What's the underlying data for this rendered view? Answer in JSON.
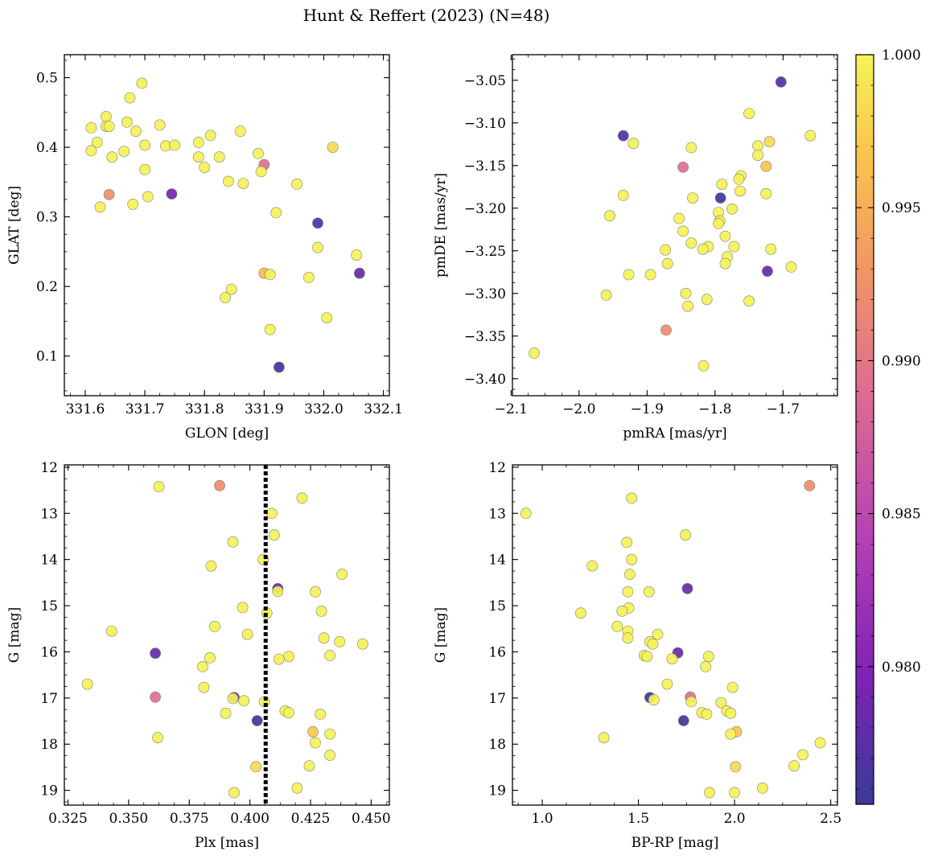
{
  "title": "Hunt & Reffert (2023) (N=48)",
  "colorbar": {
    "range": [
      0.9755,
      1.0
    ],
    "ticks": [
      "0.980",
      "0.985",
      "0.990",
      "0.995",
      "1.000"
    ],
    "tick_values": [
      0.98,
      0.985,
      0.99,
      0.995,
      1.0
    ],
    "colors": [
      "#3a3a97",
      "#7e22b4",
      "#b43fb6",
      "#dd6d92",
      "#f29763",
      "#fbc54b",
      "#f5f357"
    ]
  },
  "chart_data": [
    {
      "type": "scatter",
      "xlabel": "GLON [deg]",
      "ylabel": "GLAT [deg]",
      "xlim": [
        331.565,
        332.11
      ],
      "ylim": [
        0.043,
        0.533
      ],
      "xticks": [
        331.6,
        331.7,
        331.8,
        331.9,
        332.0,
        332.1
      ],
      "xtick_labels": [
        "331.6",
        "331.7",
        "331.8",
        "331.9",
        "332.0",
        "332.1"
      ],
      "yticks": [
        0.1,
        0.2,
        0.3,
        0.4,
        0.5
      ],
      "ytick_labels": [
        "0.1",
        "0.2",
        "0.3",
        "0.4",
        "0.5"
      ],
      "points": [
        {
          "x": 331.61,
          "y": 0.428,
          "c": 1.0
        },
        {
          "x": 331.62,
          "y": 0.407,
          "c": 1.0
        },
        {
          "x": 331.61,
          "y": 0.395,
          "c": 1.0
        },
        {
          "x": 331.635,
          "y": 0.444,
          "c": 1.0
        },
        {
          "x": 331.635,
          "y": 0.43,
          "c": 1.0
        },
        {
          "x": 331.64,
          "y": 0.43,
          "c": 1.0
        },
        {
          "x": 331.645,
          "y": 0.386,
          "c": 1.0
        },
        {
          "x": 331.665,
          "y": 0.394,
          "c": 1.0
        },
        {
          "x": 331.67,
          "y": 0.436,
          "c": 1.0
        },
        {
          "x": 331.675,
          "y": 0.471,
          "c": 1.0
        },
        {
          "x": 331.685,
          "y": 0.423,
          "c": 1.0
        },
        {
          "x": 331.695,
          "y": 0.492,
          "c": 1.0
        },
        {
          "x": 331.7,
          "y": 0.403,
          "c": 1.0
        },
        {
          "x": 331.7,
          "y": 0.368,
          "c": 1.0
        },
        {
          "x": 331.725,
          "y": 0.432,
          "c": 1.0
        },
        {
          "x": 331.735,
          "y": 0.402,
          "c": 1.0
        },
        {
          "x": 331.75,
          "y": 0.403,
          "c": 1.0
        },
        {
          "x": 331.745,
          "y": 0.333,
          "c": 0.979
        },
        {
          "x": 331.64,
          "y": 0.332,
          "c": 0.991
        },
        {
          "x": 331.625,
          "y": 0.314,
          "c": 1.0
        },
        {
          "x": 331.68,
          "y": 0.318,
          "c": 1.0
        },
        {
          "x": 331.705,
          "y": 0.329,
          "c": 1.0
        },
        {
          "x": 331.79,
          "y": 0.407,
          "c": 1.0
        },
        {
          "x": 331.79,
          "y": 0.386,
          "c": 1.0
        },
        {
          "x": 331.81,
          "y": 0.417,
          "c": 1.0
        },
        {
          "x": 331.8,
          "y": 0.371,
          "c": 1.0
        },
        {
          "x": 331.825,
          "y": 0.386,
          "c": 1.0
        },
        {
          "x": 331.86,
          "y": 0.423,
          "c": 1.0
        },
        {
          "x": 331.84,
          "y": 0.351,
          "c": 1.0
        },
        {
          "x": 331.865,
          "y": 0.348,
          "c": 1.0
        },
        {
          "x": 331.89,
          "y": 0.391,
          "c": 1.0
        },
        {
          "x": 331.9,
          "y": 0.375,
          "c": 0.988
        },
        {
          "x": 331.895,
          "y": 0.365,
          "c": 1.0
        },
        {
          "x": 331.955,
          "y": 0.347,
          "c": 1.0
        },
        {
          "x": 332.015,
          "y": 0.4,
          "c": 0.998
        },
        {
          "x": 331.92,
          "y": 0.306,
          "c": 1.0
        },
        {
          "x": 331.99,
          "y": 0.291,
          "c": 0.977
        },
        {
          "x": 331.99,
          "y": 0.256,
          "c": 1.0
        },
        {
          "x": 332.055,
          "y": 0.245,
          "c": 1.0
        },
        {
          "x": 332.06,
          "y": 0.219,
          "c": 0.978
        },
        {
          "x": 331.9,
          "y": 0.219,
          "c": 0.995
        },
        {
          "x": 331.91,
          "y": 0.217,
          "c": 1.0
        },
        {
          "x": 331.975,
          "y": 0.213,
          "c": 1.0
        },
        {
          "x": 331.845,
          "y": 0.196,
          "c": 1.0
        },
        {
          "x": 331.835,
          "y": 0.184,
          "c": 1.0
        },
        {
          "x": 332.005,
          "y": 0.155,
          "c": 1.0
        },
        {
          "x": 331.91,
          "y": 0.138,
          "c": 1.0
        },
        {
          "x": 331.925,
          "y": 0.084,
          "c": 0.976
        }
      ]
    },
    {
      "type": "scatter",
      "xlabel": "pmRA [mas/yr]",
      "ylabel": "pmDE [mas/yr]",
      "xlim": [
        -2.098,
        -1.62
      ],
      "ylim": [
        -3.42,
        -3.02
      ],
      "xticks": [
        -2.1,
        -2.0,
        -1.9,
        -1.8,
        -1.7
      ],
      "xtick_labels": [
        "−2.1",
        "−2.0",
        "−1.9",
        "−1.8",
        "−1.7"
      ],
      "yticks": [
        -3.05,
        -3.1,
        -3.15,
        -3.2,
        -3.25,
        -3.3,
        -3.35,
        -3.4
      ],
      "ytick_labels": [
        "−3.05",
        "−3.10",
        "−3.15",
        "−3.20",
        "−3.25",
        "−3.30",
        "−3.35",
        "−3.40"
      ],
      "points": [
        {
          "x": -1.703,
          "y": -3.052,
          "c": 0.977
        },
        {
          "x": -1.935,
          "y": -3.115,
          "c": 0.977
        },
        {
          "x": -1.92,
          "y": -3.124,
          "c": 1.0
        },
        {
          "x": -1.75,
          "y": -3.089,
          "c": 1.0
        },
        {
          "x": -1.66,
          "y": -3.115,
          "c": 1.0
        },
        {
          "x": -1.72,
          "y": -3.122,
          "c": 0.998
        },
        {
          "x": -1.737,
          "y": -3.127,
          "c": 1.0
        },
        {
          "x": -1.737,
          "y": -3.138,
          "c": 1.0
        },
        {
          "x": -1.835,
          "y": -3.129,
          "c": 1.0
        },
        {
          "x": -1.847,
          "y": -3.152,
          "c": 0.988
        },
        {
          "x": -1.725,
          "y": -3.151,
          "c": 0.996
        },
        {
          "x": -1.762,
          "y": -3.162,
          "c": 1.0
        },
        {
          "x": -1.765,
          "y": -3.166,
          "c": 1.0
        },
        {
          "x": -1.79,
          "y": -3.172,
          "c": 1.0
        },
        {
          "x": -1.763,
          "y": -3.18,
          "c": 1.0
        },
        {
          "x": -1.725,
          "y": -3.183,
          "c": 1.0
        },
        {
          "x": -1.792,
          "y": -3.188,
          "c": 0.976
        },
        {
          "x": -1.833,
          "y": -3.188,
          "c": 1.0
        },
        {
          "x": -1.935,
          "y": -3.185,
          "c": 1.0
        },
        {
          "x": -1.775,
          "y": -3.201,
          "c": 1.0
        },
        {
          "x": -1.795,
          "y": -3.205,
          "c": 1.0
        },
        {
          "x": -1.955,
          "y": -3.209,
          "c": 1.0
        },
        {
          "x": -1.853,
          "y": -3.212,
          "c": 1.0
        },
        {
          "x": -1.793,
          "y": -3.215,
          "c": 1.0
        },
        {
          "x": -1.795,
          "y": -3.218,
          "c": 1.0
        },
        {
          "x": -1.847,
          "y": -3.227,
          "c": 1.0
        },
        {
          "x": -1.785,
          "y": -3.233,
          "c": 1.0
        },
        {
          "x": -1.835,
          "y": -3.241,
          "c": 1.0
        },
        {
          "x": -1.81,
          "y": -3.245,
          "c": 1.0
        },
        {
          "x": -1.772,
          "y": -3.245,
          "c": 1.0
        },
        {
          "x": -1.818,
          "y": -3.248,
          "c": 1.0
        },
        {
          "x": -1.718,
          "y": -3.248,
          "c": 1.0
        },
        {
          "x": -1.873,
          "y": -3.249,
          "c": 1.0
        },
        {
          "x": -1.782,
          "y": -3.257,
          "c": 1.0
        },
        {
          "x": -1.87,
          "y": -3.265,
          "c": 1.0
        },
        {
          "x": -1.785,
          "y": -3.265,
          "c": 1.0
        },
        {
          "x": -1.688,
          "y": -3.269,
          "c": 1.0
        },
        {
          "x": -1.723,
          "y": -3.274,
          "c": 0.978
        },
        {
          "x": -1.927,
          "y": -3.278,
          "c": 1.0
        },
        {
          "x": -1.895,
          "y": -3.278,
          "c": 1.0
        },
        {
          "x": -1.96,
          "y": -3.302,
          "c": 1.0
        },
        {
          "x": -1.843,
          "y": -3.3,
          "c": 1.0
        },
        {
          "x": -1.812,
          "y": -3.307,
          "c": 1.0
        },
        {
          "x": -1.75,
          "y": -3.309,
          "c": 1.0
        },
        {
          "x": -1.84,
          "y": -3.315,
          "c": 1.0
        },
        {
          "x": -1.872,
          "y": -3.343,
          "c": 0.991
        },
        {
          "x": -2.066,
          "y": -3.37,
          "c": 1.0
        },
        {
          "x": -1.817,
          "y": -3.385,
          "c": 1.0
        }
      ]
    },
    {
      "type": "scatter",
      "xlabel": "Plx [mas]",
      "ylabel": "G [mag]",
      "xlim": [
        0.3235,
        0.4575
      ],
      "ylim": [
        19.32,
        11.95
      ],
      "y_inverted": true,
      "vline_x": 0.4065,
      "xticks": [
        0.325,
        0.35,
        0.375,
        0.4,
        0.425,
        0.45
      ],
      "xtick_labels": [
        "0.325",
        "0.350",
        "0.375",
        "0.400",
        "0.425",
        "0.450"
      ],
      "yticks": [
        12,
        13,
        14,
        15,
        16,
        17,
        18,
        19
      ],
      "ytick_labels": [
        "12",
        "13",
        "14",
        "15",
        "16",
        "17",
        "18",
        "19"
      ],
      "points": [
        {
          "x": 0.3875,
          "y": 12.4,
          "c": 0.991
        },
        {
          "x": 0.4215,
          "y": 12.67,
          "c": 1.0
        },
        {
          "x": 0.409,
          "y": 13.0,
          "c": 1.0
        },
        {
          "x": 0.41,
          "y": 13.47,
          "c": 1.0
        },
        {
          "x": 0.393,
          "y": 13.62,
          "c": 1.0
        },
        {
          "x": 0.4055,
          "y": 14.0,
          "c": 1.0
        },
        {
          "x": 0.384,
          "y": 14.14,
          "c": 1.0
        },
        {
          "x": 0.438,
          "y": 14.32,
          "c": 1.0
        },
        {
          "x": 0.4115,
          "y": 14.63,
          "c": 0.978
        },
        {
          "x": 0.4115,
          "y": 14.69,
          "c": 1.0
        },
        {
          "x": 0.427,
          "y": 14.7,
          "c": 1.0
        },
        {
          "x": 0.397,
          "y": 15.04,
          "c": 1.0
        },
        {
          "x": 0.4295,
          "y": 15.12,
          "c": 1.0
        },
        {
          "x": 0.407,
          "y": 15.16,
          "c": 1.0
        },
        {
          "x": 0.343,
          "y": 15.55,
          "c": 1.0
        },
        {
          "x": 0.3855,
          "y": 15.45,
          "c": 1.0
        },
        {
          "x": 0.399,
          "y": 15.62,
          "c": 1.0
        },
        {
          "x": 0.4305,
          "y": 15.7,
          "c": 1.0
        },
        {
          "x": 0.437,
          "y": 15.78,
          "c": 1.0
        },
        {
          "x": 0.4465,
          "y": 15.83,
          "c": 1.0
        },
        {
          "x": 0.361,
          "y": 16.03,
          "c": 0.978
        },
        {
          "x": 0.433,
          "y": 16.08,
          "c": 1.0
        },
        {
          "x": 0.416,
          "y": 16.1,
          "c": 1.0
        },
        {
          "x": 0.412,
          "y": 16.16,
          "c": 1.0
        },
        {
          "x": 0.3835,
          "y": 16.13,
          "c": 1.0
        },
        {
          "x": 0.3805,
          "y": 16.32,
          "c": 1.0
        },
        {
          "x": 0.333,
          "y": 16.7,
          "c": 1.0
        },
        {
          "x": 0.381,
          "y": 16.77,
          "c": 1.0
        },
        {
          "x": 0.361,
          "y": 16.98,
          "c": 0.988
        },
        {
          "x": 0.3935,
          "y": 16.99,
          "c": 0.976
        },
        {
          "x": 0.393,
          "y": 17.01,
          "c": 1.0
        },
        {
          "x": 0.3975,
          "y": 17.06,
          "c": 1.0
        },
        {
          "x": 0.406,
          "y": 17.08,
          "c": 1.0
        },
        {
          "x": 0.39,
          "y": 17.33,
          "c": 1.0
        },
        {
          "x": 0.4145,
          "y": 17.28,
          "c": 1.0
        },
        {
          "x": 0.416,
          "y": 17.32,
          "c": 1.0
        },
        {
          "x": 0.429,
          "y": 17.35,
          "c": 1.0
        },
        {
          "x": 0.403,
          "y": 17.49,
          "c": 0.976
        },
        {
          "x": 0.426,
          "y": 17.73,
          "c": 0.996
        },
        {
          "x": 0.433,
          "y": 17.78,
          "c": 1.0
        },
        {
          "x": 0.362,
          "y": 17.86,
          "c": 1.0
        },
        {
          "x": 0.427,
          "y": 17.97,
          "c": 1.0
        },
        {
          "x": 0.433,
          "y": 18.24,
          "c": 1.0
        },
        {
          "x": 0.4025,
          "y": 18.49,
          "c": 0.998
        },
        {
          "x": 0.4245,
          "y": 18.47,
          "c": 1.0
        },
        {
          "x": 0.4195,
          "y": 18.95,
          "c": 1.0
        },
        {
          "x": 0.3935,
          "y": 19.05,
          "c": 1.0
        },
        {
          "x": 0.3625,
          "y": 12.42,
          "c": 1.0
        }
      ]
    },
    {
      "type": "scatter",
      "xlabel": "BP-RP [mag]",
      "ylabel": "G [mag]",
      "xlim": [
        0.845,
        2.535
      ],
      "ylim": [
        19.32,
        11.95
      ],
      "y_inverted": true,
      "xticks": [
        1.0,
        1.5,
        2.0,
        2.5
      ],
      "xtick_labels": [
        "1.0",
        "1.5",
        "2.0",
        "2.5"
      ],
      "yticks": [
        12,
        13,
        14,
        15,
        16,
        17,
        18,
        19
      ],
      "ytick_labels": [
        "12",
        "13",
        "14",
        "15",
        "16",
        "17",
        "18",
        "19"
      ],
      "points": [
        {
          "x": 2.39,
          "y": 12.4,
          "c": 0.991
        },
        {
          "x": 1.465,
          "y": 12.67,
          "c": 1.0
        },
        {
          "x": 0.915,
          "y": 13.0,
          "c": 1.0
        },
        {
          "x": 1.745,
          "y": 13.47,
          "c": 1.0
        },
        {
          "x": 1.44,
          "y": 13.63,
          "c": 1.0
        },
        {
          "x": 1.465,
          "y": 14.0,
          "c": 1.0
        },
        {
          "x": 1.26,
          "y": 14.14,
          "c": 1.0
        },
        {
          "x": 1.455,
          "y": 14.32,
          "c": 1.0
        },
        {
          "x": 1.755,
          "y": 14.63,
          "c": 0.978
        },
        {
          "x": 1.445,
          "y": 14.7,
          "c": 1.0
        },
        {
          "x": 1.555,
          "y": 14.7,
          "c": 1.0
        },
        {
          "x": 1.45,
          "y": 15.05,
          "c": 1.0
        },
        {
          "x": 1.415,
          "y": 15.12,
          "c": 1.0
        },
        {
          "x": 1.2,
          "y": 15.16,
          "c": 1.0
        },
        {
          "x": 1.39,
          "y": 15.45,
          "c": 1.0
        },
        {
          "x": 1.445,
          "y": 15.55,
          "c": 1.0
        },
        {
          "x": 1.6,
          "y": 15.62,
          "c": 1.0
        },
        {
          "x": 1.445,
          "y": 15.7,
          "c": 1.0
        },
        {
          "x": 1.56,
          "y": 15.78,
          "c": 1.0
        },
        {
          "x": 1.575,
          "y": 15.83,
          "c": 1.0
        },
        {
          "x": 1.705,
          "y": 16.02,
          "c": 0.978
        },
        {
          "x": 1.53,
          "y": 16.08,
          "c": 1.0
        },
        {
          "x": 1.545,
          "y": 16.1,
          "c": 1.0
        },
        {
          "x": 1.865,
          "y": 16.1,
          "c": 1.0
        },
        {
          "x": 1.675,
          "y": 16.15,
          "c": 1.0
        },
        {
          "x": 1.85,
          "y": 16.32,
          "c": 1.0
        },
        {
          "x": 1.65,
          "y": 16.7,
          "c": 1.0
        },
        {
          "x": 1.99,
          "y": 16.77,
          "c": 1.0
        },
        {
          "x": 1.56,
          "y": 16.99,
          "c": 0.976
        },
        {
          "x": 1.77,
          "y": 16.98,
          "c": 0.988
        },
        {
          "x": 1.58,
          "y": 17.04,
          "c": 1.0
        },
        {
          "x": 1.775,
          "y": 17.08,
          "c": 1.0
        },
        {
          "x": 1.93,
          "y": 17.1,
          "c": 1.0
        },
        {
          "x": 1.96,
          "y": 17.28,
          "c": 1.0
        },
        {
          "x": 1.83,
          "y": 17.32,
          "c": 1.0
        },
        {
          "x": 1.98,
          "y": 17.33,
          "c": 1.0
        },
        {
          "x": 1.855,
          "y": 17.35,
          "c": 1.0
        },
        {
          "x": 1.735,
          "y": 17.49,
          "c": 0.976
        },
        {
          "x": 2.01,
          "y": 17.73,
          "c": 0.996
        },
        {
          "x": 1.98,
          "y": 17.78,
          "c": 1.0
        },
        {
          "x": 1.32,
          "y": 17.86,
          "c": 1.0
        },
        {
          "x": 2.445,
          "y": 17.97,
          "c": 1.0
        },
        {
          "x": 2.355,
          "y": 18.23,
          "c": 1.0
        },
        {
          "x": 2.31,
          "y": 18.47,
          "c": 1.0
        },
        {
          "x": 2.005,
          "y": 18.49,
          "c": 0.998
        },
        {
          "x": 2.145,
          "y": 18.95,
          "c": 1.0
        },
        {
          "x": 2.0,
          "y": 19.05,
          "c": 1.0
        },
        {
          "x": 1.87,
          "y": 19.05,
          "c": 1.0
        }
      ]
    }
  ]
}
